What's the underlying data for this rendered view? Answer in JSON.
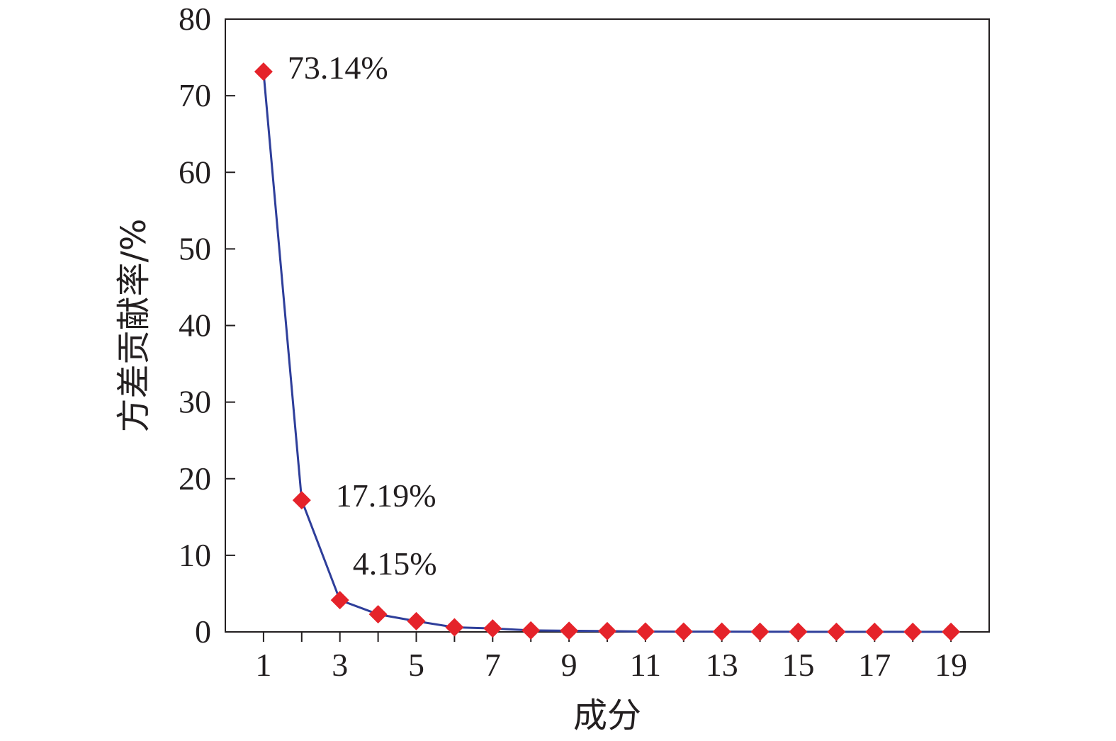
{
  "chart_data": {
    "type": "line",
    "title": "",
    "xlabel": "成分",
    "ylabel": "方差贡献率/%",
    "xlim": [
      0,
      20
    ],
    "ylim": [
      0,
      80
    ],
    "x_ticks": [
      1,
      3,
      5,
      7,
      9,
      11,
      13,
      15,
      17,
      19
    ],
    "x_tick_labels": [
      "1",
      "3",
      "5",
      "7",
      "9",
      "11",
      "13",
      "15",
      "17",
      "19"
    ],
    "y_ticks": [
      0,
      10,
      20,
      30,
      40,
      50,
      60,
      70,
      80
    ],
    "y_tick_labels": [
      "0",
      "10",
      "20",
      "30",
      "40",
      "50",
      "60",
      "70",
      "80"
    ],
    "grid": false,
    "legend": "none",
    "series": [
      {
        "x": [
          1,
          2,
          3,
          4,
          5,
          6,
          7,
          8,
          9,
          10,
          11,
          12,
          13,
          14,
          15,
          16,
          17,
          18,
          19
        ],
        "values": [
          73.14,
          17.19,
          4.15,
          2.3,
          1.4,
          0.6,
          0.45,
          0.2,
          0.15,
          0.1,
          0.05,
          0.04,
          0.03,
          0.02,
          0.02,
          0.01,
          0.01,
          0.01,
          0.01
        ],
        "line_color": "#2e3e9a",
        "marker_color": "#e5232a",
        "marker": "diamond"
      }
    ],
    "annotations": [
      {
        "text": "73.14%",
        "x": 1,
        "y": 73.14
      },
      {
        "text": "17.19%",
        "x": 2,
        "y": 17.19
      },
      {
        "text": "4.15%",
        "x": 3,
        "y": 4.15
      }
    ]
  }
}
